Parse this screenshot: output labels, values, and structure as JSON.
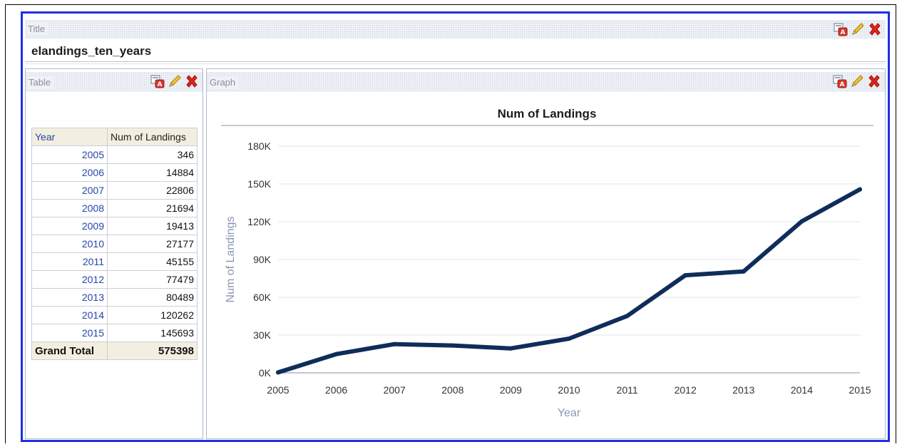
{
  "title_panel": {
    "section_label": "Title",
    "title": "elandings_ten_years"
  },
  "table_panel": {
    "section_label": "Table",
    "columns": [
      "Year",
      "Num of Landings"
    ],
    "rows": [
      {
        "year": "2005",
        "value": "346"
      },
      {
        "year": "2006",
        "value": "14884"
      },
      {
        "year": "2007",
        "value": "22806"
      },
      {
        "year": "2008",
        "value": "21694"
      },
      {
        "year": "2009",
        "value": "19413"
      },
      {
        "year": "2010",
        "value": "27177"
      },
      {
        "year": "2011",
        "value": "45155"
      },
      {
        "year": "2012",
        "value": "77479"
      },
      {
        "year": "2013",
        "value": "80489"
      },
      {
        "year": "2014",
        "value": "120262"
      },
      {
        "year": "2015",
        "value": "145693"
      }
    ],
    "total": {
      "label": "Grand Total",
      "value": "575398"
    }
  },
  "graph_panel": {
    "section_label": "Graph"
  },
  "icons": [
    "print-icon",
    "edit-pencil-icon",
    "delete-x-icon"
  ],
  "colors": {
    "selection_border": "#1f2fe0",
    "line": "#0f2d5a",
    "year_link": "#2447a8",
    "axis_title": "#8a96b2"
  },
  "chart_data": {
    "type": "line",
    "title": "Num of Landings",
    "xlabel": "Year",
    "ylabel": "Num of Landings",
    "categories": [
      "2005",
      "2006",
      "2007",
      "2008",
      "2009",
      "2010",
      "2011",
      "2012",
      "2013",
      "2014",
      "2015"
    ],
    "series": [
      {
        "values": [
          346,
          14884,
          22806,
          21694,
          19413,
          27177,
          45155,
          77479,
          80489,
          120262,
          145693
        ]
      }
    ],
    "ylim": [
      0,
      180000
    ],
    "yticks": [
      "0K",
      "30K",
      "60K",
      "90K",
      "120K",
      "150K",
      "180K"
    ],
    "grid": true,
    "legend": "none"
  }
}
